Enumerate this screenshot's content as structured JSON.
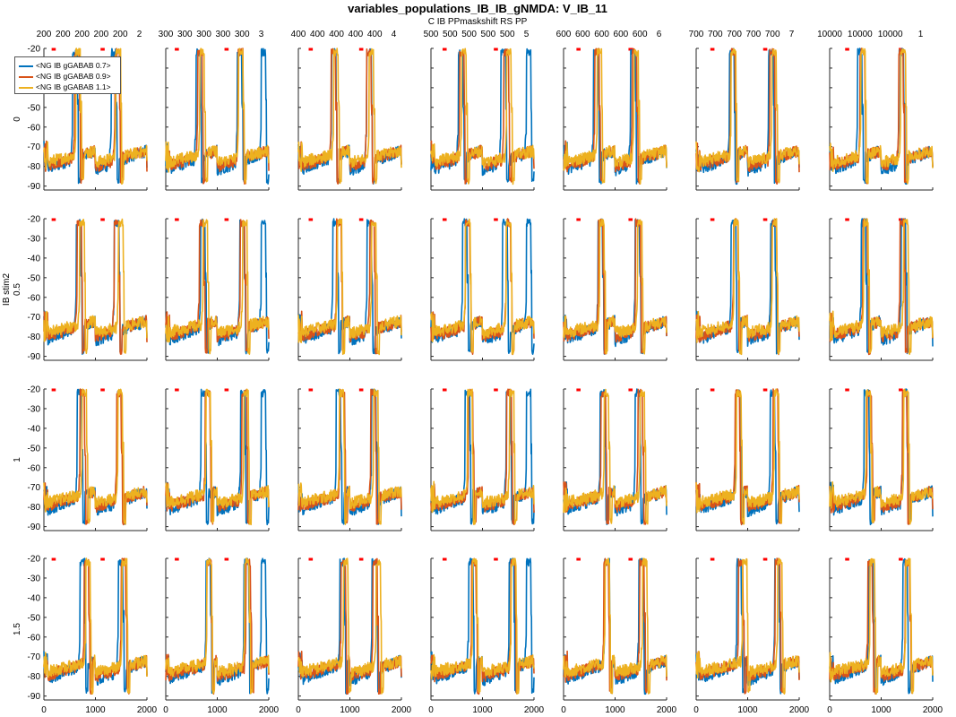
{
  "chart_data": {
    "type": "line",
    "title": "variables_populations_IB_IB_gNMDA: V_IB_11",
    "subtitle": "C IB PPmaskshift RS PP",
    "row_axis_label": "IB stim2",
    "row_labels": [
      "0",
      "0.5",
      "1",
      "1.5"
    ],
    "top_tick_labels": [
      [
        "200",
        "200",
        "200",
        "200",
        "200",
        "2"
      ],
      [
        "300",
        "300",
        "300",
        "300",
        "300",
        "3"
      ],
      [
        "400",
        "400",
        "400",
        "400",
        "400",
        "4"
      ],
      [
        "500",
        "500",
        "500",
        "500",
        "500",
        "5"
      ],
      [
        "600",
        "600",
        "600",
        "600",
        "600",
        "6"
      ],
      [
        "700",
        "700",
        "700",
        "700",
        "700",
        "7"
      ],
      [
        "10000",
        "10000",
        "10000",
        "1"
      ]
    ],
    "x_ticks": [
      "0",
      "1000",
      "2000"
    ],
    "xlim": [
      0,
      2000
    ],
    "y_ticks": [
      "-20",
      "-30",
      "-40",
      "-50",
      "-60",
      "-70",
      "-80",
      "-90"
    ],
    "ylim": [
      -92,
      -20
    ],
    "legend_placement": "top-left",
    "series": [
      {
        "name": "<NG IB gGABAB 0.7>",
        "color": "#0072BD"
      },
      {
        "name": "<NG IB gGABAB 0.9>",
        "color": "#D95319"
      },
      {
        "name": "<NG IB gGABAB 1.1>",
        "color": "#EDB120"
      }
    ],
    "marker_color": "#FF0000",
    "grid": false
  }
}
